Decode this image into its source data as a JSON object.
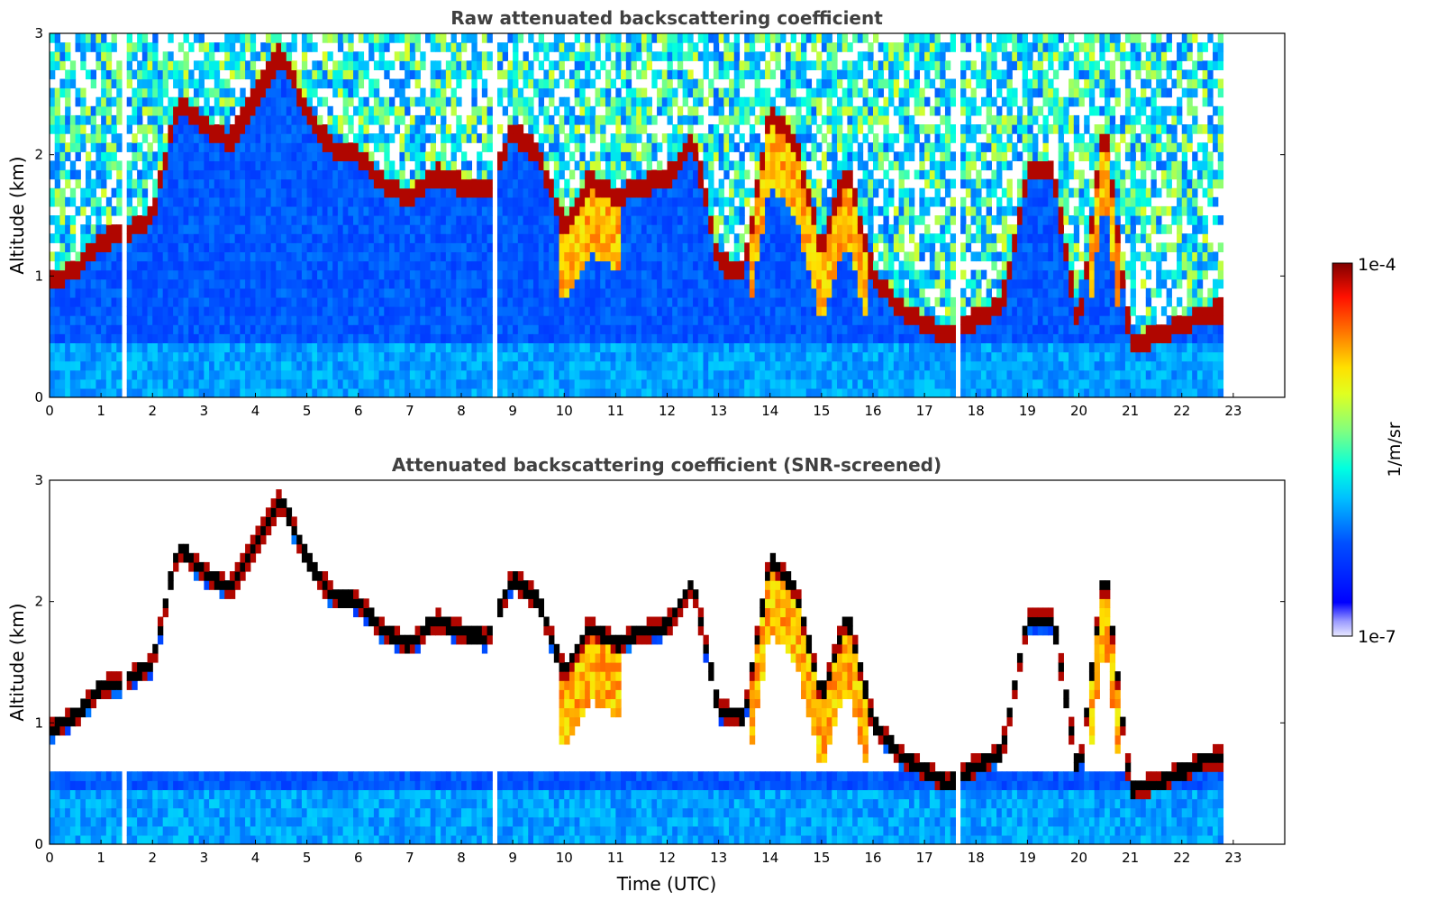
{
  "chart_data": [
    {
      "type": "heatmap",
      "title": "Raw attenuated backscattering coefficient",
      "xlabel": "",
      "ylabel": "Altitude (km)",
      "xlim": [
        0,
        24
      ],
      "ylim": [
        0,
        3
      ],
      "x_ticks": [
        "0",
        "1",
        "2",
        "3",
        "4",
        "5",
        "6",
        "7",
        "8",
        "9",
        "10",
        "11",
        "12",
        "13",
        "14",
        "15",
        "16",
        "17",
        "18",
        "19",
        "20",
        "21",
        "22",
        "23"
      ],
      "y_ticks": [
        "0",
        "1",
        "2",
        "3"
      ],
      "data_end_time": 22.8,
      "data_gaps": [
        1.45,
        8.6,
        17.6
      ],
      "features": {
        "layer_top_km": [
          [
            0.0,
            0.95
          ],
          [
            0.5,
            1.05
          ],
          [
            1.0,
            1.3
          ],
          [
            1.5,
            1.35
          ],
          [
            2.0,
            1.5
          ],
          [
            2.5,
            2.45
          ],
          [
            3.0,
            2.25
          ],
          [
            3.5,
            2.1
          ],
          [
            4.5,
            2.85
          ],
          [
            5.0,
            2.35
          ],
          [
            5.5,
            2.05
          ],
          [
            6.0,
            2.0
          ],
          [
            6.5,
            1.75
          ],
          [
            7.0,
            1.65
          ],
          [
            7.5,
            1.85
          ],
          [
            8.0,
            1.75
          ],
          [
            8.5,
            1.7
          ],
          [
            9.0,
            2.2
          ],
          [
            9.5,
            2.0
          ],
          [
            10.0,
            1.4
          ],
          [
            10.5,
            1.8
          ],
          [
            11.0,
            1.65
          ],
          [
            11.5,
            1.75
          ],
          [
            12.0,
            1.8
          ],
          [
            12.5,
            2.15
          ],
          [
            13.0,
            1.1
          ],
          [
            13.5,
            1.05
          ],
          [
            14.0,
            2.35
          ],
          [
            14.5,
            2.1
          ],
          [
            15.0,
            1.2
          ],
          [
            15.5,
            1.9
          ],
          [
            16.0,
            1.0
          ],
          [
            16.5,
            0.75
          ],
          [
            17.0,
            0.6
          ],
          [
            17.5,
            0.5
          ],
          [
            18.0,
            0.65
          ],
          [
            18.5,
            0.75
          ],
          [
            19.0,
            1.85
          ],
          [
            19.5,
            1.85
          ],
          [
            20.0,
            0.55
          ],
          [
            20.5,
            2.3
          ],
          [
            21.0,
            0.45
          ],
          [
            21.5,
            0.5
          ],
          [
            22.0,
            0.6
          ],
          [
            22.5,
            0.7
          ],
          [
            22.8,
            0.72
          ]
        ]
      }
    },
    {
      "type": "heatmap",
      "title": "Attenuated backscattering coefficient (SNR-screened)",
      "xlabel": "Time (UTC)",
      "ylabel": "Altitude (km)",
      "xlim": [
        0,
        24
      ],
      "ylim": [
        0,
        3
      ],
      "x_ticks": [
        "0",
        "1",
        "2",
        "3",
        "4",
        "5",
        "6",
        "7",
        "8",
        "9",
        "10",
        "11",
        "12",
        "13",
        "14",
        "15",
        "16",
        "17",
        "18",
        "19",
        "20",
        "21",
        "22",
        "23"
      ],
      "y_ticks": [
        "0",
        "1",
        "2",
        "3"
      ],
      "data_end_time": 22.8,
      "data_gaps": [
        1.45,
        8.6,
        17.6
      ]
    }
  ],
  "colorbar": {
    "label": "1/m/sr",
    "max_label": "1e-4",
    "min_label": "1e-7",
    "colormap": "jet",
    "scale": "log",
    "range": [
      1e-07,
      0.0001
    ],
    "colors": [
      "#00008f",
      "#0000ff",
      "#0080ff",
      "#00ffff",
      "#80ff80",
      "#ffff00",
      "#ff8000",
      "#ff0000",
      "#800000"
    ]
  }
}
